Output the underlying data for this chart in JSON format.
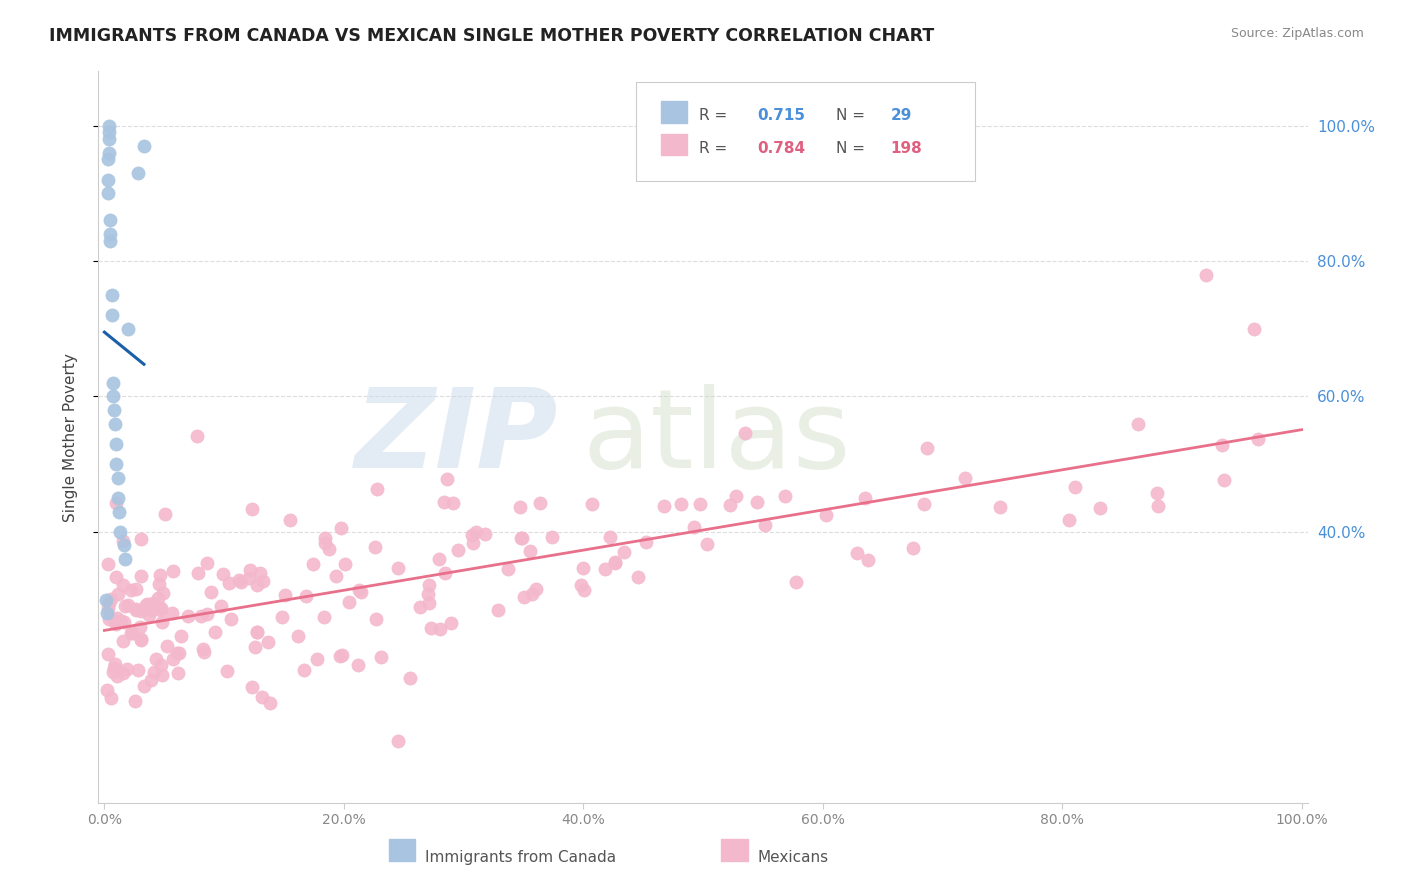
{
  "title": "IMMIGRANTS FROM CANADA VS MEXICAN SINGLE MOTHER POVERTY CORRELATION CHART",
  "source": "Source: ZipAtlas.com",
  "ylabel": "Single Mother Poverty",
  "legend_labels": [
    "Immigrants from Canada",
    "Mexicans"
  ],
  "legend_r": [
    0.715,
    0.784
  ],
  "legend_n": [
    29,
    198
  ],
  "blue_color": "#a8c4e0",
  "pink_color": "#f4b8cc",
  "blue_line_color": "#1a5fa8",
  "pink_line_color": "#e8708a",
  "ytick_values": [
    0.4,
    0.6,
    0.8,
    1.0
  ],
  "ytick_labels": [
    "40.0%",
    "60.0%",
    "80.0%",
    "100.0%"
  ],
  "xtick_values": [
    0.0,
    0.2,
    0.4,
    0.6,
    0.8,
    1.0
  ],
  "xtick_labels": [
    "0.0%",
    "20.0%",
    "40.0%",
    "60.0%",
    "80.0%",
    "100.0%"
  ]
}
